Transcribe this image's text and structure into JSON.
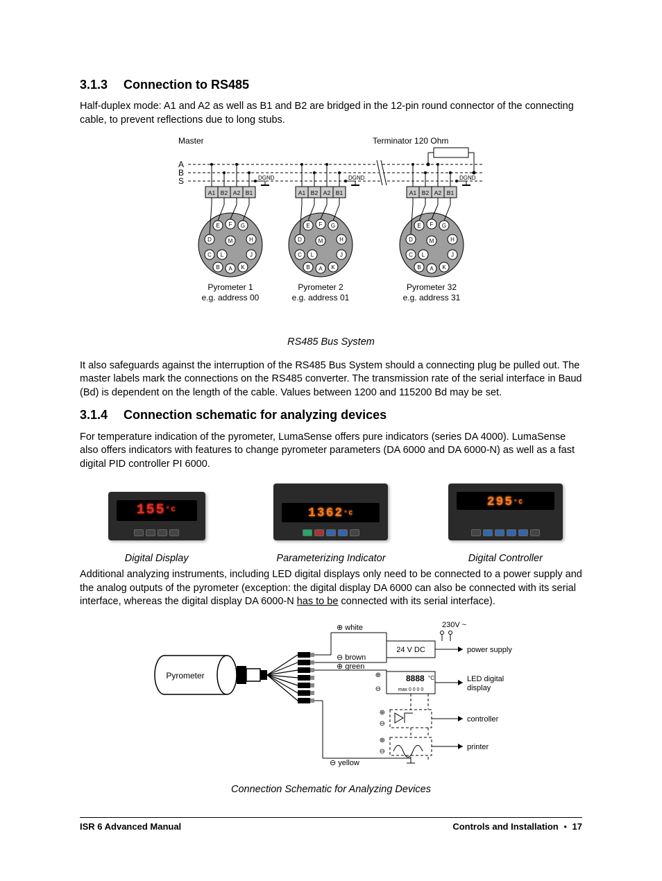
{
  "section1": {
    "num": "3.1.3",
    "title": "Connection to RS485",
    "para1": "Half-duplex mode: A1 and A2 as well as B1 and B2 are bridged in the 12-pin round connector of the connecting cable, to prevent reflections due to long stubs.",
    "diagram": {
      "master_label": "Master",
      "terminator_label": "Terminator 120 Ohm",
      "bus_lines": [
        "A",
        "B",
        "S"
      ],
      "dgnd_label": "DGND",
      "terminals": [
        "A1",
        "B2",
        "A2",
        "B1"
      ],
      "pins": [
        "E",
        "F",
        "G",
        "D",
        "M",
        "H",
        "C",
        "L",
        "J",
        "B",
        "A",
        "K"
      ],
      "connectors": [
        {
          "name": "Pyrometer 1",
          "addr": "e.g. address 00"
        },
        {
          "name": "Pyrometer 2",
          "addr": "e.g. address 01"
        },
        {
          "name": "Pyrometer 32",
          "addr": "e.g. address 31"
        }
      ],
      "colors": {
        "connector_fill": "#9e9e9e",
        "term_fill": "#cccccc",
        "line": "#000000",
        "bus_dash": "4,3"
      }
    },
    "fig_caption": "RS485 Bus System",
    "para2": "It also safeguards against the interruption of the RS485 Bus System should a connecting plug be pulled out. The master labels mark the connections on the RS485 converter. The transmission rate of the serial interface in Baud (Bd) is dependent on the length of the cable. Values between 1200 and 115200 Bd may be set."
  },
  "section2": {
    "num": "3.1.4",
    "title": "Connection schematic for analyzing devices",
    "para1": "For temperature indication of the pyrometer, LumaSense offers pure indicators (series DA 4000). LumaSense also offers indicators with features to change pyrometer parameters (DA 6000 and DA 6000-N) as well as a fast digital PID controller PI 6000.",
    "devices": [
      {
        "display": "155",
        "unit": "°C",
        "caption": "Digital Display"
      },
      {
        "display": "1362",
        "unit": "°C",
        "caption": "Parameterizing Indicator"
      },
      {
        "display": "295",
        "unit": "°C",
        "caption": "Digital Controller"
      }
    ],
    "para2_a": "Additional analyzing instruments, including LED digital displays only need to be connected to a power supply and the analog outputs of the pyrometer (exception: the digital display DA 6000 can also be connected with its serial interface, whereas the digital display DA 6000-N ",
    "para2_underline": "has to be",
    "para2_b": " connected with its serial interface).",
    "schematic": {
      "pyrometer_label": "Pyrometer",
      "wires": [
        {
          "color_label": "white",
          "symbol": "⊕"
        },
        {
          "color_label": "brown",
          "symbol": "⊖"
        },
        {
          "color_label": "green",
          "symbol": "⊕"
        },
        {
          "color_label": "yellow",
          "symbol": "⊖"
        }
      ],
      "voltage_in": "230V ~",
      "supply_box": "24 V DC",
      "led_box": "8888",
      "led_unit": "°C",
      "led_sub": "max 0 0 0 0",
      "targets": [
        "power supply",
        "LED digital display",
        "controller",
        "printer"
      ]
    },
    "fig_caption": "Connection Schematic for Analyzing Devices"
  },
  "footer": {
    "left": "ISR 6 Advanced Manual",
    "right_a": "Controls and Installation",
    "right_b": "17"
  }
}
